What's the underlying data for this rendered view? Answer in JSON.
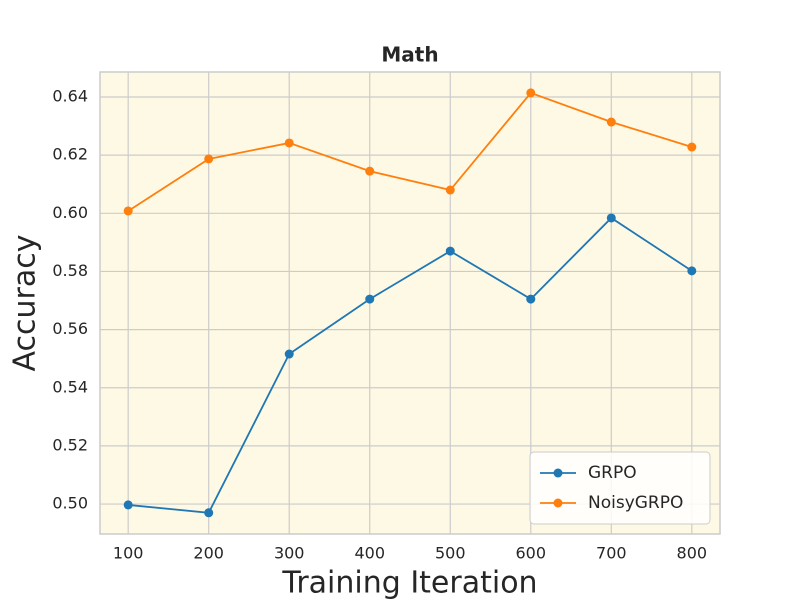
{
  "chart_data": {
    "type": "line",
    "title": "Math",
    "x_label": "Training Iteration",
    "y_label": "Accuracy",
    "x": [
      100,
      200,
      300,
      400,
      500,
      600,
      700,
      800
    ],
    "series": [
      {
        "name": "GRPO",
        "color": "#1f77b4",
        "values": [
          0.4997,
          0.497,
          0.5516,
          0.5705,
          0.587,
          0.5705,
          0.5984,
          0.5802
        ]
      },
      {
        "name": "NoisyGRPO",
        "color": "#ff7f0e",
        "values": [
          0.6008,
          0.6187,
          0.6242,
          0.6145,
          0.608,
          0.6414,
          0.6314,
          0.6228
        ]
      }
    ],
    "xlim": [
      65,
      835
    ],
    "xticks": [
      100,
      200,
      300,
      400,
      500,
      600,
      700,
      800
    ],
    "ylim": [
      0.4897,
      0.6486
    ],
    "yticks": [
      {
        "value": 0.5,
        "label": "0.50"
      },
      0.52,
      0.54,
      0.56,
      0.58,
      {
        "value": 0.6,
        "label": "0.60"
      },
      0.62,
      0.64
    ],
    "grid": true,
    "legend": "lower right",
    "background": "#fef9e4"
  }
}
